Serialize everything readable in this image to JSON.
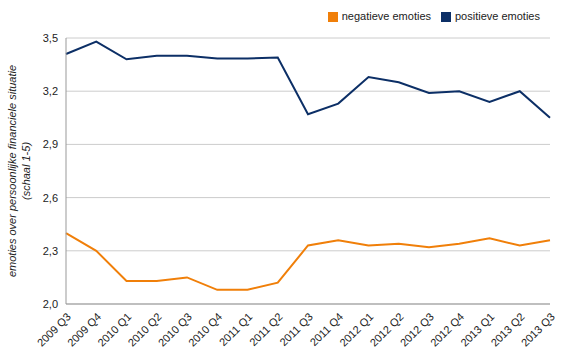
{
  "chart_data": {
    "type": "line",
    "y_label": "emoties over persoonlijke financiele situatie (schaal 1-5)",
    "categories": [
      "2009 Q3",
      "2009 Q4",
      "2010 Q1",
      "2010 Q2",
      "2010 Q3",
      "2010 Q4",
      "2011 Q1",
      "2011 Q2",
      "2011 Q3",
      "2011 Q4",
      "2012 Q1",
      "2012 Q2",
      "2012 Q3",
      "2012 Q4",
      "2013 Q1",
      "2013 Q2",
      "2013 Q3"
    ],
    "series": [
      {
        "name": "positieve emoties",
        "color": "#0c2f66",
        "values": [
          3.41,
          3.48,
          3.38,
          3.4,
          3.4,
          3.385,
          3.385,
          3.39,
          3.07,
          3.13,
          3.28,
          3.25,
          3.19,
          3.2,
          3.14,
          3.2,
          3.05
        ]
      },
      {
        "name": "negatieve emoties",
        "color": "#f07f09",
        "values": [
          2.4,
          2.3,
          2.13,
          2.13,
          2.15,
          2.08,
          2.08,
          2.12,
          2.33,
          2.36,
          2.33,
          2.34,
          2.32,
          2.34,
          2.37,
          2.33,
          2.36
        ]
      }
    ],
    "ylim": [
      2.0,
      3.5
    ],
    "yticks": [
      {
        "value": 2.0,
        "label": "2,0"
      },
      {
        "value": 2.3,
        "label": "2,3"
      },
      {
        "value": 2.6,
        "label": "2,6"
      },
      {
        "value": 2.9,
        "label": "2,9"
      },
      {
        "value": 3.2,
        "label": "3,2"
      },
      {
        "value": 3.5,
        "label": "3,5"
      }
    ],
    "grid": true,
    "legend": "top-right"
  }
}
